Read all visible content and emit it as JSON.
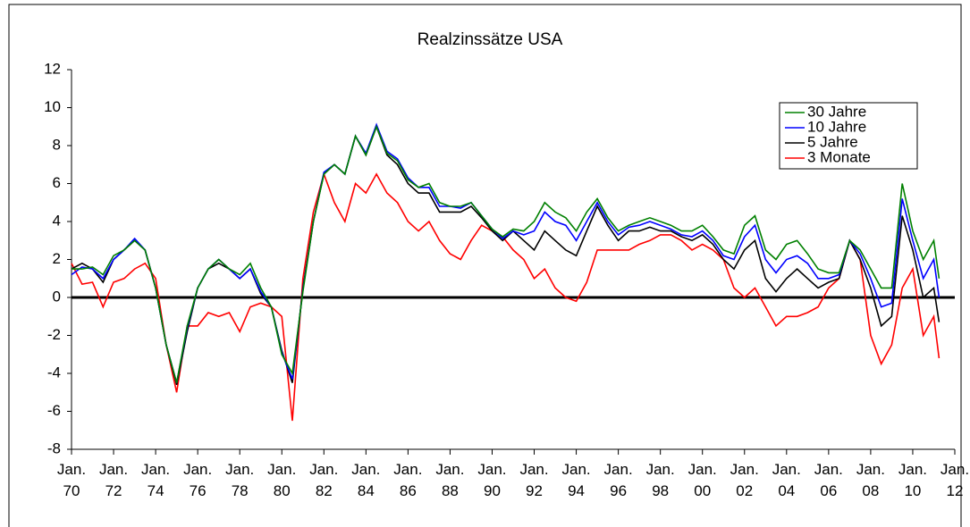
{
  "chart_data": {
    "type": "line",
    "title": "Realzinssätze USA",
    "x": [
      1970,
      1970.5,
      1971,
      1971.5,
      1972,
      1972.5,
      1973,
      1973.5,
      1974,
      1974.5,
      1975,
      1975.5,
      1976,
      1976.5,
      1977,
      1977.5,
      1978,
      1978.5,
      1979,
      1979.5,
      1980,
      1980.5,
      1981,
      1981.5,
      1982,
      1982.5,
      1983,
      1983.5,
      1984,
      1984.5,
      1985,
      1985.5,
      1986,
      1986.5,
      1987,
      1987.5,
      1988,
      1988.5,
      1989,
      1989.5,
      1990,
      1990.5,
      1991,
      1991.5,
      1992,
      1992.5,
      1993,
      1993.5,
      1994,
      1994.5,
      1995,
      1995.5,
      1996,
      1996.5,
      1997,
      1997.5,
      1998,
      1998.5,
      1999,
      1999.5,
      2000,
      2000.5,
      2001,
      2001.5,
      2002,
      2002.5,
      2003,
      2003.5,
      2004,
      2004.5,
      2005,
      2005.5,
      2006,
      2006.5,
      2007,
      2007.5,
      2008,
      2008.5,
      2009,
      2009.5,
      2010,
      2010.5,
      2011,
      2011.25
    ],
    "series": [
      {
        "name": "30 Jahre",
        "color": "#008000",
        "values": [
          1.5,
          1.5,
          1.6,
          1.2,
          2.2,
          2.5,
          3.0,
          2.5,
          0.5,
          -2.5,
          -4.5,
          -1.5,
          0.5,
          1.5,
          2.0,
          1.5,
          1.2,
          1.8,
          0.5,
          -0.5,
          -3.0,
          -4.0,
          0.3,
          4.0,
          6.5,
          7.0,
          6.5,
          8.5,
          7.5,
          9.0,
          7.6,
          7.2,
          6.2,
          5.8,
          6.0,
          5.0,
          4.8,
          4.8,
          5.0,
          4.3,
          3.6,
          3.2,
          3.6,
          3.5,
          4.0,
          5.0,
          4.5,
          4.2,
          3.5,
          4.5,
          5.2,
          4.2,
          3.5,
          3.8,
          4.0,
          4.2,
          4.0,
          3.8,
          3.5,
          3.5,
          3.8,
          3.2,
          2.5,
          2.3,
          3.8,
          4.3,
          2.5,
          2.0,
          2.8,
          3.0,
          2.3,
          1.5,
          1.3,
          1.3,
          3.0,
          2.5,
          1.5,
          0.5,
          0.5,
          6.0,
          3.5,
          2.0,
          3.0,
          1.0
        ]
      },
      {
        "name": "10 Jahre",
        "color": "#0000ff",
        "values": [
          1.2,
          1.6,
          1.5,
          1.0,
          2.0,
          2.5,
          3.1,
          2.5,
          0.5,
          -2.5,
          -4.5,
          -1.6,
          0.5,
          1.5,
          2.0,
          1.5,
          1.0,
          1.5,
          0.3,
          -0.5,
          -2.9,
          -4.3,
          0.4,
          4.0,
          6.6,
          7.0,
          6.5,
          8.5,
          7.6,
          9.1,
          7.7,
          7.3,
          6.3,
          5.8,
          5.8,
          4.8,
          4.8,
          4.7,
          5.0,
          4.3,
          3.6,
          3.1,
          3.5,
          3.3,
          3.5,
          4.5,
          4.0,
          3.8,
          3.0,
          4.0,
          5.0,
          4.0,
          3.3,
          3.7,
          3.8,
          4.0,
          3.8,
          3.6,
          3.3,
          3.2,
          3.5,
          3.0,
          2.2,
          2.0,
          3.2,
          3.8,
          2.0,
          1.3,
          2.0,
          2.2,
          1.8,
          1.0,
          1.0,
          1.2,
          3.0,
          2.3,
          1.0,
          -0.5,
          -0.3,
          5.2,
          3.0,
          1.0,
          2.0,
          0
        ]
      },
      {
        "name": "5 Jahre",
        "color": "#000000",
        "values": [
          1.5,
          1.8,
          1.5,
          0.8,
          2.0,
          2.5,
          3.0,
          2.5,
          0.5,
          -2.5,
          -4.6,
          -1.8,
          0.5,
          1.5,
          1.8,
          1.5,
          1.0,
          1.5,
          0.2,
          -0.5,
          -2.8,
          -4.5,
          0.5,
          4.0,
          6.5,
          7.0,
          6.5,
          8.5,
          7.5,
          9.0,
          7.5,
          7.0,
          6.0,
          5.5,
          5.5,
          4.5,
          4.5,
          4.5,
          4.8,
          4.2,
          3.5,
          3.0,
          3.5,
          3.0,
          2.5,
          3.5,
          3.0,
          2.5,
          2.2,
          3.5,
          4.8,
          3.8,
          3.0,
          3.5,
          3.5,
          3.7,
          3.5,
          3.5,
          3.2,
          3.0,
          3.3,
          2.8,
          2.0,
          1.5,
          2.5,
          3.0,
          1.0,
          0.3,
          1.0,
          1.5,
          1.0,
          0.5,
          0.8,
          1.0,
          3.0,
          2.0,
          0.5,
          -1.5,
          -1.0,
          4.3,
          2.5,
          0,
          0.5,
          -1.3
        ]
      },
      {
        "name": "3 Monate",
        "color": "#ff0000",
        "values": [
          1.8,
          0.7,
          0.8,
          -0.5,
          0.8,
          1.0,
          1.5,
          1.8,
          1.0,
          -2.5,
          -5.0,
          -1.5,
          -1.5,
          -0.8,
          -1.0,
          -0.8,
          -1.8,
          -0.5,
          -0.3,
          -0.5,
          -1.0,
          -6.5,
          1.0,
          4.5,
          6.5,
          5.0,
          4.0,
          6.0,
          5.5,
          6.5,
          5.5,
          5.0,
          4.0,
          3.5,
          4.0,
          3.0,
          2.3,
          2.0,
          3.0,
          3.8,
          3.5,
          3.2,
          2.5,
          2.0,
          1.0,
          1.5,
          0.5,
          0,
          -0.2,
          0.8,
          2.5,
          2.5,
          2.5,
          2.5,
          2.8,
          3.0,
          3.3,
          3.3,
          3.0,
          2.5,
          2.8,
          2.5,
          2.0,
          0.5,
          0,
          0.5,
          -0.5,
          -1.5,
          -1.0,
          -1.0,
          -0.8,
          -0.5,
          0.5,
          1.0,
          3.0,
          2.0,
          -2.0,
          -3.5,
          -2.5,
          0.5,
          1.5,
          -2.0,
          -1.0,
          -3.2
        ]
      }
    ],
    "xlim": [
      1970,
      2012
    ],
    "xticks": [
      {
        "value": 1970,
        "label": "Jan. 70"
      },
      {
        "value": 1972,
        "label": "Jan. 72"
      },
      {
        "value": 1974,
        "label": "Jan. 74"
      },
      {
        "value": 1976,
        "label": "Jan. 76"
      },
      {
        "value": 1978,
        "label": "Jan. 78"
      },
      {
        "value": 1980,
        "label": "Jan. 80"
      },
      {
        "value": 1982,
        "label": "Jan. 82"
      },
      {
        "value": 1984,
        "label": "Jan. 84"
      },
      {
        "value": 1986,
        "label": "Jan. 86"
      },
      {
        "value": 1988,
        "label": "Jan. 88"
      },
      {
        "value": 1990,
        "label": "Jan. 90"
      },
      {
        "value": 1992,
        "label": "Jan. 92"
      },
      {
        "value": 1994,
        "label": "Jan. 94"
      },
      {
        "value": 1996,
        "label": "Jan. 96"
      },
      {
        "value": 1998,
        "label": "Jan. 98"
      },
      {
        "value": 2000,
        "label": "Jan. 00"
      },
      {
        "value": 2002,
        "label": "Jan. 02"
      },
      {
        "value": 2004,
        "label": "Jan. 04"
      },
      {
        "value": 2006,
        "label": "Jan. 06"
      },
      {
        "value": 2008,
        "label": "Jan. 08"
      },
      {
        "value": 2010,
        "label": "Jan. 10"
      },
      {
        "value": 2012,
        "label": "Jan. 12"
      }
    ],
    "ylim": [
      -8,
      12
    ],
    "yticks": [
      -8,
      -6,
      -4,
      -2,
      0,
      2,
      4,
      6,
      8,
      10,
      12
    ],
    "grid": false,
    "legend": "top-right"
  }
}
